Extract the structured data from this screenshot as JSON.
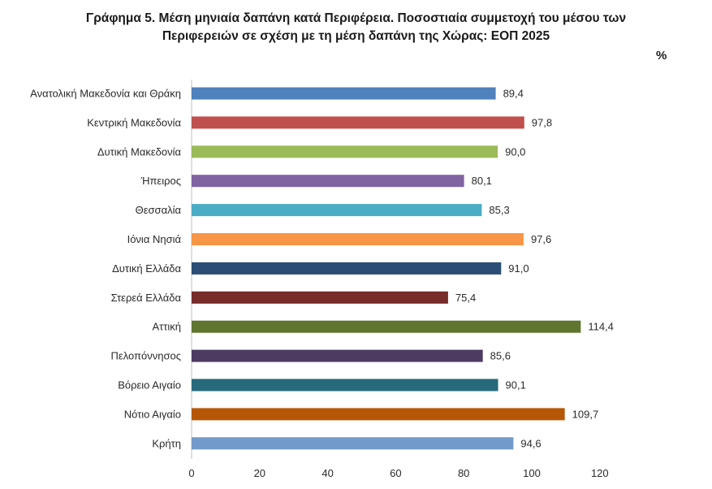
{
  "chart_data": {
    "type": "bar",
    "orientation": "horizontal",
    "title_lines": [
      "Γράφημα 5. Μέση μηνιαία δαπάνη κατά Περιφέρεια. Ποσοστιαία συμμετοχή του μέσου των",
      "Περιφερειών σε σχέση με τη μέση δαπάνη της Χώρας: ΕΟΠ 2025"
    ],
    "unit": "%",
    "categories": [
      "Ανατολική Μακεδονία και Θράκη",
      "Κεντρική Μακεδονία",
      "Δυτική Μακεδονία",
      "Ήπειρος",
      "Θεσσαλία",
      "Ιόνια Νησιά",
      "Δυτική Ελλάδα",
      "Στερεά Ελλάδα",
      "Αττική",
      "Πελοπόννησος",
      "Βόρειο Αιγαίο",
      "Νότιο Αιγαίο",
      "Κρήτη"
    ],
    "values": [
      89.4,
      97.8,
      90.0,
      80.1,
      85.3,
      97.6,
      91.0,
      75.4,
      114.4,
      85.6,
      90.1,
      109.7,
      94.6
    ],
    "value_labels": [
      "89,4",
      "97,8",
      "90,0",
      "80,1",
      "85,3",
      "97,6",
      "91,0",
      "75,4",
      "114,4",
      "85,6",
      "90,1",
      "109,7",
      "94,6"
    ],
    "colors": [
      "#4f81bd",
      "#c0504d",
      "#9bbb59",
      "#8064a2",
      "#4bacc6",
      "#f79646",
      "#2c4d75",
      "#772c2a",
      "#5f7530",
      "#4d3b62",
      "#276a7c",
      "#b65708",
      "#729aca"
    ],
    "xlim": [
      0,
      120
    ],
    "xticks": [
      "0",
      "20",
      "40",
      "60",
      "80",
      "100",
      "120"
    ],
    "grid": false,
    "legend": "none"
  }
}
